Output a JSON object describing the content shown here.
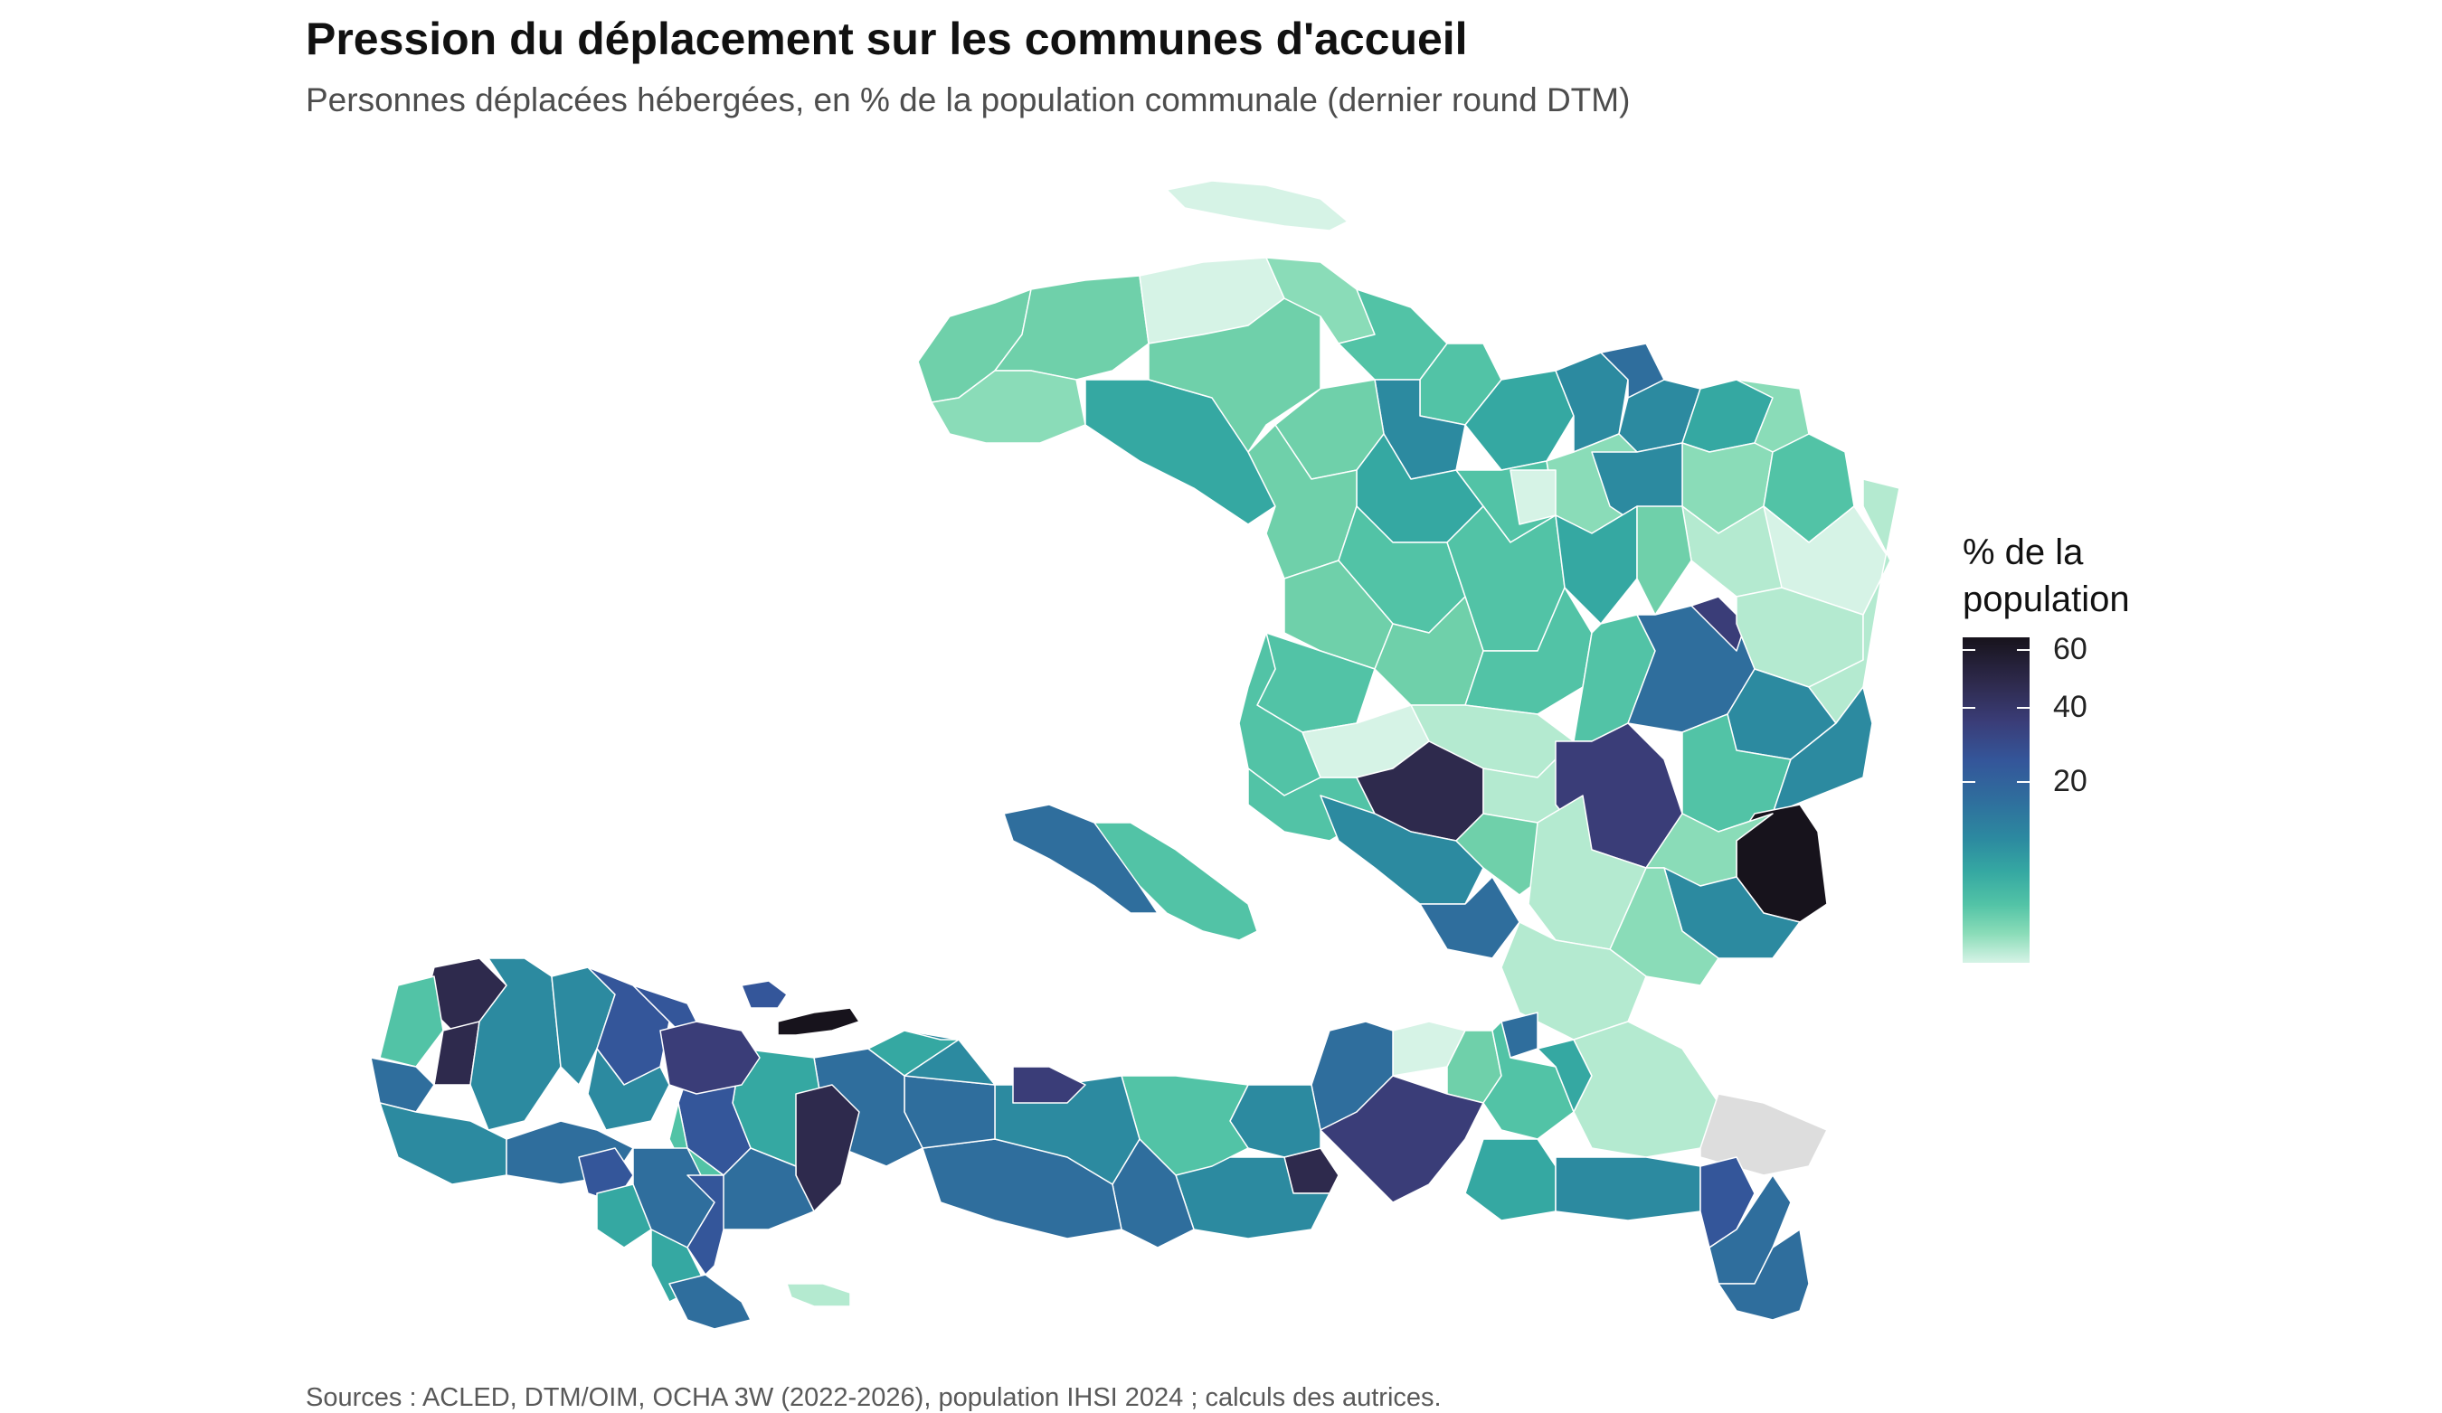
{
  "title": "Pression du déplacement sur les communes d'accueil",
  "subtitle": "Personnes déplacées hébergées, en % de la population communale (dernier round DTM)",
  "caption": "Sources : ACLED, DTM/OIM, OCHA 3W (2022-2026), population IHSI 2024 ; calculs des autrices.",
  "legend": {
    "title_line1": "% de la",
    "title_line2": "population",
    "ticks": [
      {
        "label": "60",
        "value": 60
      },
      {
        "label": "40",
        "value": 40
      },
      {
        "label": "20",
        "value": 20
      }
    ],
    "scale_min": 0,
    "scale_max": 65
  },
  "colors": {
    "lowest": "#d6f3e6",
    "low": "#6fd0aa",
    "mid": "#2c8aa0",
    "high": "#34569a",
    "highest": "#17131c",
    "no_data": "#dddddd",
    "border": "#ffffff"
  }
}
